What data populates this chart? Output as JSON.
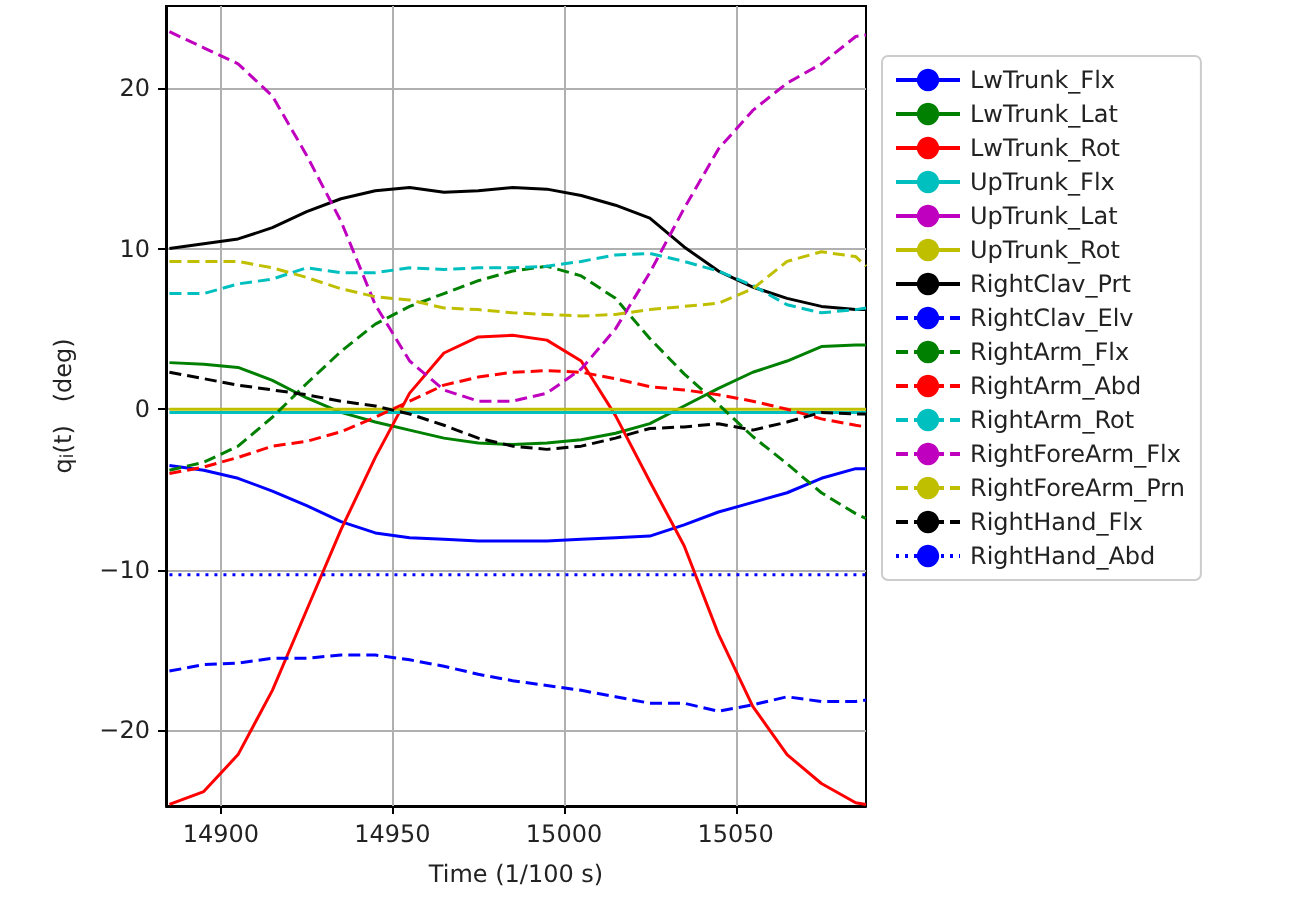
{
  "chart_data": {
    "type": "line",
    "xlabel": "Time (1/100 s)",
    "ylabel": "q$_{i}$(t)   (deg)",
    "x": [
      14885,
      14895,
      14905,
      14915,
      14925,
      14935,
      14945,
      14955,
      14965,
      14975,
      14985,
      14995,
      15005,
      15015,
      15025,
      15035,
      15045,
      15055,
      15065,
      15075,
      15085,
      15088
    ],
    "xlim": [
      14884,
      15088
    ],
    "xticks": [
      14900,
      14950,
      15000,
      15050
    ],
    "ylim": [
      -24.7,
      25.1
    ],
    "yticks": [
      -20,
      -10,
      0,
      10,
      20
    ],
    "grid": true,
    "legend": "right",
    "marker": "none",
    "series": [
      {
        "name": "LwTrunk_Flx",
        "color": "#0000ff",
        "line_style": "solid",
        "values": [
          -3.5,
          -3.8,
          -4.3,
          -5.1,
          -6.0,
          -7.0,
          -7.7,
          -8.0,
          -8.1,
          -8.2,
          -8.2,
          -8.2,
          -8.1,
          -8.0,
          -7.9,
          -7.2,
          -6.4,
          -5.8,
          -5.2,
          -4.3,
          -3.7,
          -3.7
        ]
      },
      {
        "name": "LwTrunk_Lat",
        "color": "#008000",
        "line_style": "solid",
        "values": [
          2.9,
          2.8,
          2.6,
          1.8,
          0.7,
          -0.2,
          -0.8,
          -1.3,
          -1.8,
          -2.1,
          -2.2,
          -2.1,
          -1.9,
          -1.5,
          -0.9,
          0.2,
          1.3,
          2.3,
          3.0,
          3.9,
          4.0,
          4.0
        ]
      },
      {
        "name": "LwTrunk_Rot",
        "color": "#ff0000",
        "line_style": "solid",
        "values": [
          -24.6,
          -23.8,
          -21.5,
          -17.5,
          -12.5,
          -7.5,
          -3.0,
          1.0,
          3.5,
          4.5,
          4.6,
          4.3,
          3.0,
          -0.4,
          -4.5,
          -8.5,
          -14.0,
          -18.5,
          -21.5,
          -23.3,
          -24.5,
          -24.6
        ]
      },
      {
        "name": "UpTrunk_Flx",
        "color": "#00bfbf",
        "line_style": "solid",
        "values": [
          -0.2,
          -0.2,
          -0.2,
          -0.2,
          -0.2,
          -0.2,
          -0.2,
          -0.2,
          -0.2,
          -0.2,
          -0.2,
          -0.2,
          -0.2,
          -0.2,
          -0.2,
          -0.2,
          -0.2,
          -0.2,
          -0.2,
          -0.2,
          -0.2,
          -0.2
        ]
      },
      {
        "name": "UpTrunk_Lat",
        "color": "#bf00bf",
        "line_style": "solid",
        "values": [
          null,
          null,
          null,
          null,
          null,
          null,
          null,
          null,
          null,
          null,
          null,
          null,
          null,
          null,
          null,
          null,
          null,
          null,
          null,
          null,
          null,
          null
        ]
      },
      {
        "name": "UpTrunk_Rot",
        "color": "#bfbf00",
        "line_style": "solid",
        "values": [
          0,
          0,
          0,
          0,
          0,
          0,
          0,
          0,
          0,
          0,
          0,
          0,
          0,
          0,
          0,
          0,
          0,
          0,
          0,
          0,
          0,
          0
        ]
      },
      {
        "name": "RightClav_Prt",
        "color": "#000000",
        "line_style": "solid",
        "values": [
          10.0,
          10.3,
          10.6,
          11.3,
          12.3,
          13.1,
          13.6,
          13.8,
          13.5,
          13.6,
          13.8,
          13.7,
          13.3,
          12.7,
          11.9,
          10.1,
          8.6,
          7.6,
          6.9,
          6.4,
          6.2,
          6.2
        ]
      },
      {
        "name": "RightClav_Elv",
        "color": "#0000ff",
        "line_style": "dashed",
        "values": [
          -16.3,
          -15.9,
          -15.8,
          -15.5,
          -15.5,
          -15.3,
          -15.3,
          -15.6,
          -16.0,
          -16.5,
          -16.9,
          -17.2,
          -17.5,
          -17.9,
          -18.3,
          -18.3,
          -18.8,
          -18.4,
          -17.9,
          -18.2,
          -18.2,
          -18.1
        ]
      },
      {
        "name": "RightArm_Flx",
        "color": "#008000",
        "line_style": "dashed",
        "values": [
          -3.8,
          -3.3,
          -2.3,
          -0.5,
          1.6,
          3.6,
          5.3,
          6.4,
          7.2,
          8.0,
          8.6,
          8.9,
          8.3,
          6.9,
          4.4,
          2.2,
          0.3,
          -1.7,
          -3.4,
          -5.2,
          -6.5,
          -6.8
        ]
      },
      {
        "name": "RightArm_Abd",
        "color": "#ff0000",
        "line_style": "dashed",
        "values": [
          -4.0,
          -3.6,
          -3.0,
          -2.3,
          -2.0,
          -1.4,
          -0.5,
          0.5,
          1.5,
          2.0,
          2.3,
          2.4,
          2.3,
          1.9,
          1.4,
          1.2,
          0.9,
          0.5,
          0.0,
          -0.6,
          -1.0,
          -1.1
        ]
      },
      {
        "name": "RightArm_Rot",
        "color": "#00bfbf",
        "line_style": "dashed",
        "values": [
          7.2,
          7.2,
          7.8,
          8.1,
          8.8,
          8.5,
          8.5,
          8.8,
          8.7,
          8.8,
          8.8,
          8.9,
          9.2,
          9.6,
          9.7,
          9.2,
          8.6,
          7.7,
          6.5,
          6.0,
          6.2,
          6.3
        ]
      },
      {
        "name": "RightForeArm_Flx",
        "color": "#bf00bf",
        "line_style": "dashed",
        "values": [
          23.5,
          22.5,
          21.5,
          19.5,
          15.8,
          11.7,
          6.5,
          3.0,
          1.2,
          0.5,
          0.5,
          1.0,
          2.5,
          5.0,
          8.5,
          12.5,
          16.2,
          18.6,
          20.3,
          21.5,
          23.2,
          23.3
        ]
      },
      {
        "name": "RightForeArm_Prn",
        "color": "#bfbf00",
        "line_style": "dashed",
        "values": [
          9.2,
          9.2,
          9.2,
          8.8,
          8.2,
          7.5,
          7.0,
          6.8,
          6.3,
          6.2,
          6.0,
          5.9,
          5.8,
          5.9,
          6.2,
          6.4,
          6.6,
          7.5,
          9.2,
          9.8,
          9.5,
          8.9
        ]
      },
      {
        "name": "RightHand_Flx",
        "color": "#000000",
        "line_style": "dashed",
        "values": [
          2.3,
          1.9,
          1.5,
          1.2,
          0.9,
          0.5,
          0.2,
          -0.3,
          -1.0,
          -1.8,
          -2.3,
          -2.5,
          -2.3,
          -1.8,
          -1.2,
          -1.1,
          -0.9,
          -1.3,
          -0.8,
          -0.2,
          -0.3,
          -0.3
        ]
      },
      {
        "name": "RightHand_Abd",
        "color": "#0000ff",
        "line_style": "dotted",
        "values": [
          -10.3,
          -10.3,
          -10.3,
          -10.3,
          -10.3,
          -10.3,
          -10.3,
          -10.3,
          -10.3,
          -10.3,
          -10.3,
          -10.3,
          -10.3,
          -10.3,
          -10.3,
          -10.3,
          -10.3,
          -10.3,
          -10.3,
          -10.3,
          -10.3,
          -10.3
        ]
      }
    ]
  }
}
